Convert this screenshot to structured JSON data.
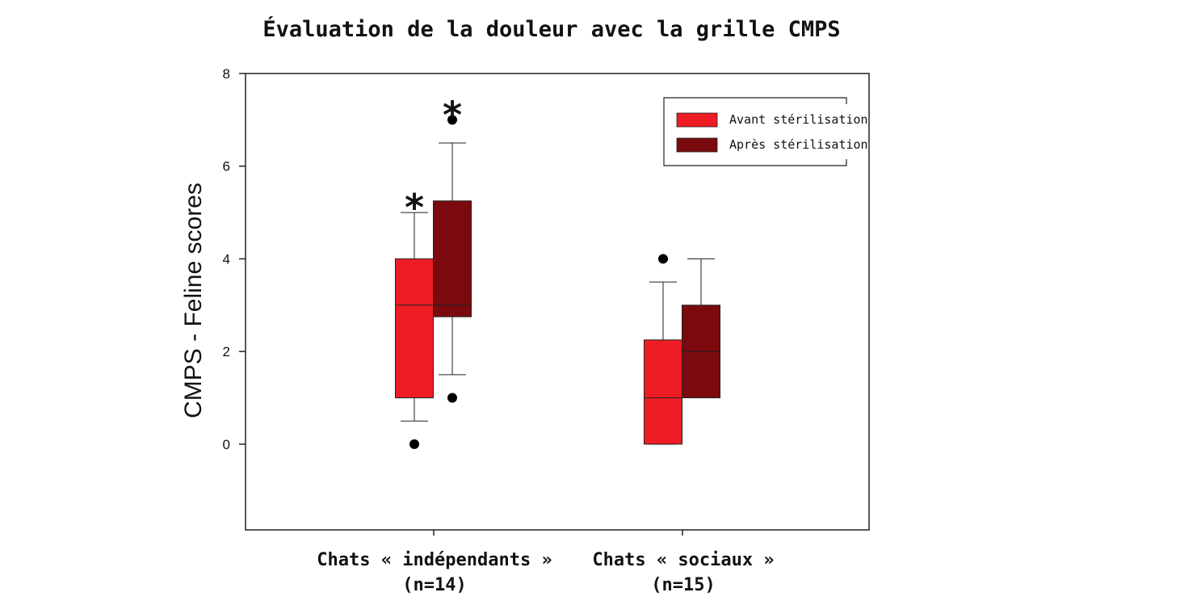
{
  "chart_data": {
    "type": "box",
    "title": "Évaluation de la douleur avec la grille CMPS",
    "xlabel": "",
    "ylabel": "CMPS - Feline scores",
    "ylim": [
      -1.85,
      8
    ],
    "yticks": [
      0,
      2,
      4,
      6,
      8
    ],
    "grid": false,
    "legend_position": "top-right",
    "categories": [
      {
        "label": "Chats « indépendants »",
        "sublabel": "(n=14)"
      },
      {
        "label": "Chats « sociaux »",
        "sublabel": "(n=15)"
      }
    ],
    "series": [
      {
        "name": "Avant stérilisation",
        "color": "#ee1c24",
        "boxes": [
          {
            "category": 0,
            "whisker_low": 0.5,
            "q1": 1,
            "median": 3,
            "q3": 4,
            "whisker_high": 5,
            "outliers": [
              0
            ],
            "significant": true
          },
          {
            "category": 1,
            "whisker_low": 0,
            "q1": 0,
            "median": 1,
            "q3": 2.25,
            "whisker_high": 3.5,
            "outliers": [
              4
            ],
            "significant": false
          }
        ]
      },
      {
        "name": "Après stérilisation",
        "color": "#7a0a0e",
        "boxes": [
          {
            "category": 0,
            "whisker_low": 1.5,
            "q1": 2.75,
            "median": 3,
            "q3": 5.25,
            "whisker_high": 6.5,
            "outliers": [
              1,
              7
            ],
            "significant": true
          },
          {
            "category": 1,
            "whisker_low": 1,
            "q1": 1,
            "median": 2,
            "q3": 3,
            "whisker_high": 4,
            "outliers": [],
            "significant": false
          }
        ]
      }
    ],
    "significance_marker": "*"
  }
}
